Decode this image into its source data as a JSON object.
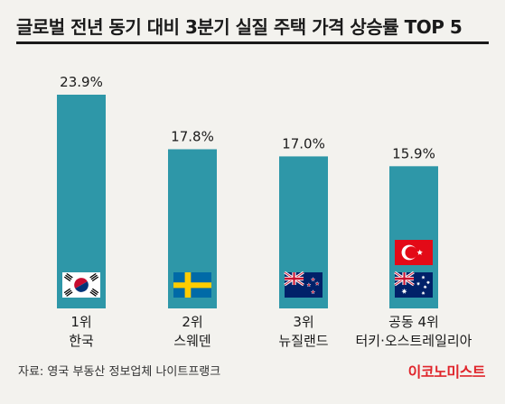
{
  "title": "글로벌 전년 동기 대비 3분기 실질 주택 가격 상승률 TOP 5",
  "source": "자료: 영국 부동산 정보업체 나이트프랭크",
  "brand": "이코노미스트",
  "colors": {
    "bar": "#2e97a8",
    "brand": "#e0252b",
    "background": "#f3f2ee"
  },
  "chart_data": {
    "type": "bar",
    "title": "글로벌 전년 동기 대비 3분기 실질 주택 가격 상승률 TOP 5",
    "unit": "%",
    "ylim": [
      0,
      25
    ],
    "grid": false,
    "legend": "none",
    "categories": [
      {
        "rank": "1위",
        "name": "한국",
        "flags": [
          "south-korea-flag"
        ]
      },
      {
        "rank": "2위",
        "name": "스웨덴",
        "flags": [
          "sweden-flag"
        ]
      },
      {
        "rank": "3위",
        "name": "뉴질랜드",
        "flags": [
          "new-zealand-flag"
        ]
      },
      {
        "rank": "공동 4위",
        "name": "터키·오스트레일리아",
        "flags": [
          "turkey-flag",
          "australia-flag"
        ]
      }
    ],
    "values": [
      23.9,
      17.8,
      17.0,
      15.9
    ],
    "value_labels": [
      "23.9%",
      "17.8%",
      "17.0%",
      "15.9%"
    ]
  }
}
